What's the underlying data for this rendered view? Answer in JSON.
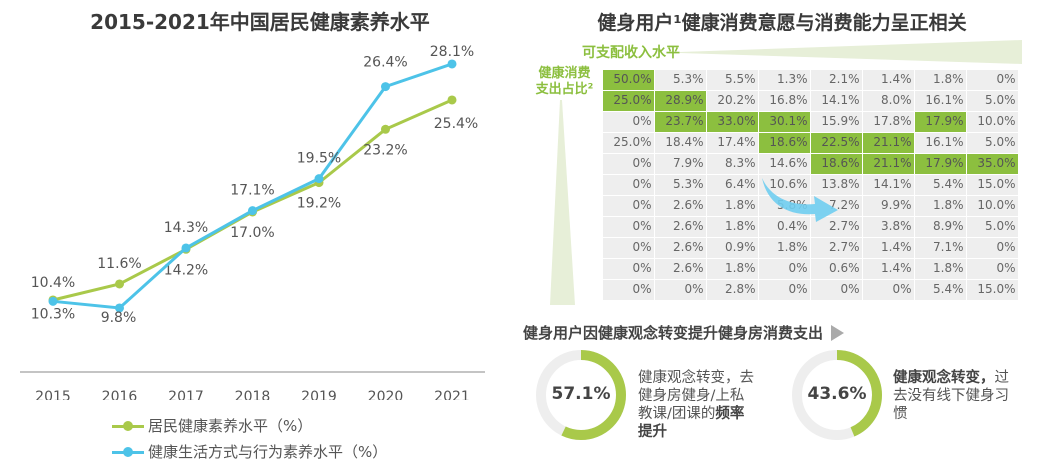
{
  "chart_data": [
    {
      "type": "line",
      "title": "2015-2021年中国居民健康素养水平",
      "categories": [
        "2015",
        "2016",
        "2017",
        "2018",
        "2019",
        "2020",
        "2021"
      ],
      "ylim": [
        5,
        30
      ],
      "grid": false,
      "legend": "bottom",
      "series": [
        {
          "name": "居民健康素养水平（%）",
          "color": "#a9c94a",
          "values": [
            10.4,
            11.6,
            14.2,
            17.0,
            19.2,
            23.2,
            25.4
          ],
          "labels": [
            "10.4%",
            "11.6%",
            "14.2%",
            "17.0%",
            "19.2%",
            "23.2%",
            "25.4%"
          ]
        },
        {
          "name": "健康生活方式与行为素养水平（%）",
          "color": "#4dc3e8",
          "values": [
            10.3,
            9.8,
            14.3,
            17.1,
            19.5,
            26.4,
            28.1
          ],
          "labels": [
            "10.3%",
            "9.8%",
            "14.3%",
            "17.1%",
            "19.5%",
            "26.4%",
            "28.1%"
          ]
        }
      ]
    },
    {
      "type": "table",
      "title": "健身用户¹健康消费意愿与消费能力呈正相关",
      "column_axis": "可支配收入水平",
      "row_axis": "健康消费支出占比²",
      "highlight_color": "#8cbf3f",
      "rows": [
        [
          "50.0%",
          "5.3%",
          "5.5%",
          "1.3%",
          "2.1%",
          "1.4%",
          "1.8%",
          "0%"
        ],
        [
          "25.0%",
          "28.9%",
          "20.2%",
          "16.8%",
          "14.1%",
          "8.0%",
          "16.1%",
          "5.0%"
        ],
        [
          "0%",
          "23.7%",
          "33.0%",
          "30.1%",
          "15.9%",
          "17.8%",
          "17.9%",
          "10.0%"
        ],
        [
          "25.0%",
          "18.4%",
          "17.4%",
          "18.6%",
          "22.5%",
          "21.1%",
          "16.1%",
          "5.0%"
        ],
        [
          "0%",
          "7.9%",
          "8.3%",
          "14.6%",
          "18.6%",
          "21.1%",
          "17.9%",
          "35.0%"
        ],
        [
          "0%",
          "5.3%",
          "6.4%",
          "10.6%",
          "13.8%",
          "14.1%",
          "5.4%",
          "15.0%"
        ],
        [
          "0%",
          "2.6%",
          "1.8%",
          "5.8%",
          "7.2%",
          "9.9%",
          "1.8%",
          "10.0%"
        ],
        [
          "0%",
          "2.6%",
          "1.8%",
          "0.4%",
          "2.7%",
          "3.8%",
          "8.9%",
          "5.0%"
        ],
        [
          "0%",
          "2.6%",
          "0.9%",
          "1.8%",
          "2.7%",
          "1.4%",
          "7.1%",
          "0%"
        ],
        [
          "0%",
          "2.6%",
          "1.8%",
          "0%",
          "0.6%",
          "1.4%",
          "1.8%",
          "0%"
        ],
        [
          "0%",
          "0%",
          "2.8%",
          "0%",
          "0%",
          "0%",
          "5.4%",
          "15.0%"
        ]
      ],
      "highlighted": [
        [
          0,
          0
        ],
        [
          1,
          0
        ],
        [
          1,
          1
        ],
        [
          2,
          1
        ],
        [
          2,
          2
        ],
        [
          2,
          3
        ],
        [
          2,
          6
        ],
        [
          3,
          3
        ],
        [
          3,
          4
        ],
        [
          3,
          5
        ],
        [
          4,
          4
        ],
        [
          4,
          5
        ],
        [
          4,
          6
        ],
        [
          4,
          7
        ]
      ]
    },
    {
      "type": "pie",
      "title": "健身用户因健康观念转变提升健身房消费支出",
      "items": [
        {
          "value": 57.1,
          "label": "57.1%",
          "text_plain": "健康观念转变，去健身房健身/上私教课/团课的",
          "text_bold": "频率提升"
        },
        {
          "value": 43.6,
          "label": "43.6%",
          "text_bold": "健康观念转变，",
          "text_plain": "过去没有线下健身习惯"
        }
      ]
    }
  ]
}
